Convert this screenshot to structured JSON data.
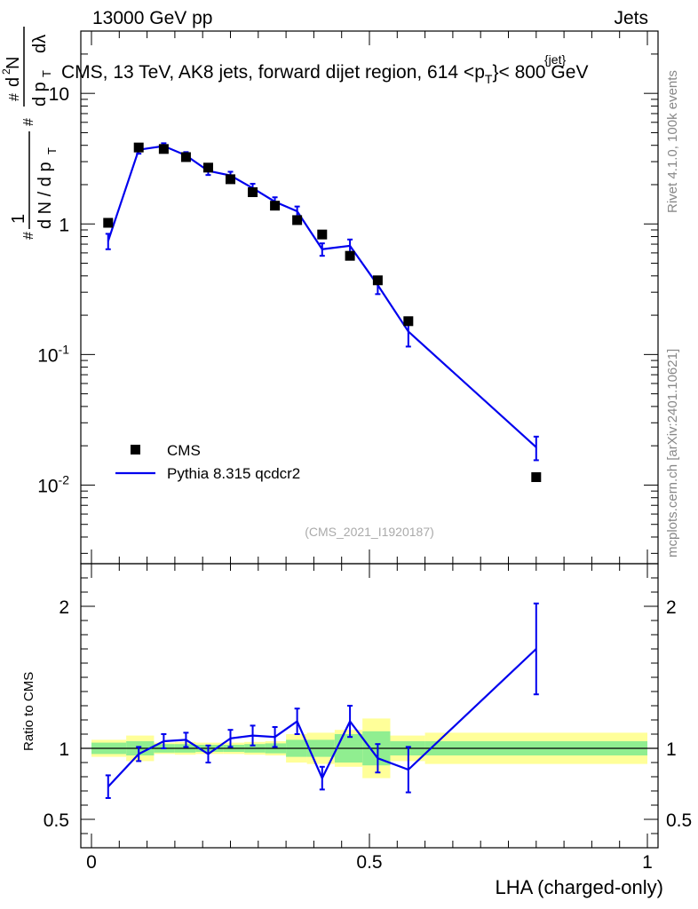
{
  "header": {
    "left": "13000 GeV pp",
    "right": "Jets"
  },
  "chart_data": {
    "type": "line",
    "title": "CMS, 13 TeV, AK8 jets, forward dijet region, 614 <p_T^{jet}< 800 GeV",
    "title_text": "CMS, 13 TeV, AK8 jets, forward dijet region, 614 <",
    "title_pt": "p",
    "title_pt_sup": "{jet}",
    "title_pt_sub": "T",
    "title_after": "}< 800 GeV",
    "xlabel": "LHA (charged-only)",
    "ylabel": "1/dN/dp_T # d^2N/dp_T dλ",
    "ratio_ylabel": "Ratio to CMS",
    "analysis_id": "(CMS_2021_I1920187)",
    "side_text_top": "Rivet 4.1.0,  100k events",
    "side_text_bottom": "mcplots.cern.ch [arXiv:2401.10621]",
    "xlim": [
      0,
      1
    ],
    "ylim_log": [
      0.0025,
      30
    ],
    "ratio_ylim": [
      0.3,
      2.3
    ],
    "x_ticks": [
      "0",
      "0.5",
      "1"
    ],
    "y_ticks": [
      "10^-2",
      "10^-1",
      "1",
      "10"
    ],
    "ratio_ticks": [
      "0.5",
      "1",
      "2"
    ],
    "bins": [
      0.0,
      0.0625,
      0.1125,
      0.15,
      0.1875,
      0.2375,
      0.275,
      0.3125,
      0.35,
      0.3875,
      0.4375,
      0.4875,
      0.5375,
      0.6,
      1.0
    ],
    "x": [
      0.03,
      0.085,
      0.13,
      0.17,
      0.21,
      0.25,
      0.29,
      0.33,
      0.37,
      0.415,
      0.465,
      0.515,
      0.57,
      0.8
    ],
    "series": [
      {
        "name": "CMS",
        "style": "markers",
        "values": [
          1.02,
          3.85,
          3.75,
          3.25,
          2.7,
          2.2,
          1.75,
          1.38,
          1.07,
          0.83,
          0.57,
          0.37,
          0.18,
          0.0115
        ],
        "color": "#000000"
      },
      {
        "name": "Pythia 8.315 qcdcr2",
        "style": "line",
        "values": [
          0.74,
          3.7,
          3.95,
          3.35,
          2.55,
          2.35,
          1.88,
          1.48,
          1.25,
          0.64,
          0.68,
          0.34,
          0.15,
          0.0195
        ],
        "errors": [
          0.1,
          0.25,
          0.2,
          0.2,
          0.18,
          0.16,
          0.15,
          0.12,
          0.11,
          0.07,
          0.08,
          0.05,
          0.035,
          0.004
        ],
        "color": "#0000ee"
      }
    ],
    "ratio": {
      "values": [
        0.73,
        0.96,
        1.05,
        1.06,
        0.96,
        1.07,
        1.09,
        1.08,
        1.19,
        0.79,
        1.19,
        0.93,
        0.85,
        1.7
      ],
      "errors": [
        0.08,
        0.05,
        0.05,
        0.05,
        0.06,
        0.06,
        0.07,
        0.07,
        0.09,
        0.08,
        0.11,
        0.1,
        0.16,
        0.32
      ],
      "band_inner": [
        0.04,
        0.05,
        0.03,
        0.03,
        0.025,
        0.025,
        0.03,
        0.035,
        0.06,
        0.06,
        0.1,
        0.12,
        0.05,
        0.05
      ],
      "band_outer": [
        0.06,
        0.09,
        0.04,
        0.045,
        0.04,
        0.04,
        0.045,
        0.05,
        0.1,
        0.11,
        0.13,
        0.21,
        0.09,
        0.11
      ]
    },
    "colors": {
      "band_inner": "#90ee90",
      "band_outer": "#ffff99",
      "side_text": "#888888",
      "analysis_id": "#aaaaaa"
    }
  }
}
